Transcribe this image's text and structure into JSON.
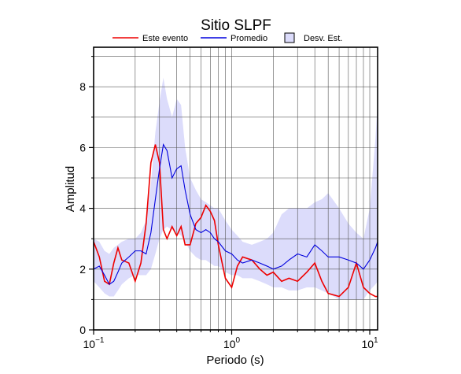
{
  "chart_data": {
    "type": "line",
    "title": "Sitio SLPF",
    "xlabel": "Periodo (s)",
    "ylabel": "Amplitud",
    "xscale": "log",
    "grid": true,
    "xlim": [
      0.1,
      11.4
    ],
    "ylim": [
      0,
      9.3
    ],
    "xticks": [
      {
        "value": 0.1,
        "label": "10",
        "exponent": "−1"
      },
      {
        "value": 1,
        "label": "10",
        "exponent": "0"
      },
      {
        "value": 10,
        "label": "10",
        "exponent": "1"
      }
    ],
    "xminor": [
      0.2,
      0.3,
      0.4,
      0.5,
      0.6,
      0.7,
      0.8,
      0.9,
      2,
      3,
      4,
      5,
      6,
      7,
      8,
      9
    ],
    "yticks": [
      0,
      2,
      4,
      6,
      8
    ],
    "yminor": [
      1,
      3,
      5,
      7,
      9
    ],
    "x": [
      0.1,
      0.11,
      0.12,
      0.13,
      0.14,
      0.15,
      0.16,
      0.18,
      0.2,
      0.22,
      0.24,
      0.26,
      0.28,
      0.3,
      0.32,
      0.34,
      0.37,
      0.4,
      0.43,
      0.46,
      0.5,
      0.55,
      0.6,
      0.65,
      0.7,
      0.75,
      0.8,
      0.9,
      1.0,
      1.1,
      1.2,
      1.4,
      1.6,
      1.8,
      2,
      2.3,
      2.6,
      3,
      3.5,
      4,
      4.5,
      5,
      6,
      7,
      8,
      9,
      10,
      11,
      11.4
    ],
    "band": {
      "name": "Desv. Est.",
      "color": "#dcdcfb",
      "upper": [
        3.0,
        2.9,
        2.6,
        2.5,
        2.7,
        2.8,
        2.9,
        3.0,
        3.0,
        3.2,
        3.6,
        4.8,
        6.5,
        7.5,
        8.3,
        7.6,
        7.0,
        7.6,
        7.4,
        6.0,
        5.0,
        4.6,
        4.3,
        4.2,
        4.1,
        4.0,
        4.0,
        3.6,
        3.3,
        3.1,
        2.9,
        2.8,
        2.9,
        3.0,
        3.2,
        3.8,
        4.0,
        4.0,
        4.0,
        4.2,
        4.3,
        4.5,
        4.0,
        3.5,
        3.2,
        3.0,
        4.0,
        6.3,
        7.5
      ],
      "lower": [
        1.6,
        1.4,
        1.2,
        1.1,
        1.1,
        1.3,
        1.5,
        1.7,
        1.8,
        1.8,
        1.8,
        2.0,
        2.5,
        3.0,
        3.3,
        3.4,
        3.3,
        3.2,
        3.1,
        2.9,
        2.6,
        2.4,
        2.3,
        2.3,
        2.2,
        2.1,
        2.1,
        1.9,
        1.8,
        1.8,
        1.7,
        1.7,
        1.6,
        1.5,
        1.4,
        1.4,
        1.3,
        1.3,
        1.4,
        1.4,
        1.3,
        1.2,
        1.0,
        1.0,
        1.0,
        1.0,
        1.3,
        1.5,
        1.6
      ]
    },
    "series": [
      {
        "name": "Este evento",
        "color": "#ee0000",
        "values": [
          2.9,
          2.4,
          1.6,
          1.5,
          2.2,
          2.7,
          2.3,
          2.2,
          1.6,
          2.2,
          3.5,
          5.5,
          6.1,
          5.5,
          3.3,
          3.0,
          3.4,
          3.1,
          3.4,
          2.8,
          2.8,
          3.5,
          3.7,
          4.1,
          3.9,
          3.6,
          2.8,
          1.7,
          1.4,
          2.1,
          2.4,
          2.3,
          2.0,
          1.8,
          1.9,
          1.6,
          1.7,
          1.6,
          1.9,
          2.2,
          1.6,
          1.2,
          1.1,
          1.4,
          2.2,
          1.4,
          1.2,
          1.1,
          1.1
        ]
      },
      {
        "name": "Promedio",
        "color": "#0000dd",
        "values": [
          2.0,
          2.1,
          1.8,
          1.5,
          1.6,
          1.9,
          2.2,
          2.4,
          2.6,
          2.6,
          2.5,
          3.2,
          4.3,
          5.3,
          6.1,
          5.9,
          5.0,
          5.3,
          5.4,
          4.6,
          3.8,
          3.3,
          3.2,
          3.3,
          3.2,
          3.0,
          2.9,
          2.6,
          2.5,
          2.3,
          2.2,
          2.3,
          2.2,
          2.1,
          2.0,
          2.1,
          2.3,
          2.5,
          2.4,
          2.8,
          2.6,
          2.4,
          2.4,
          2.3,
          2.2,
          2.0,
          2.3,
          2.7,
          2.9
        ]
      }
    ]
  }
}
